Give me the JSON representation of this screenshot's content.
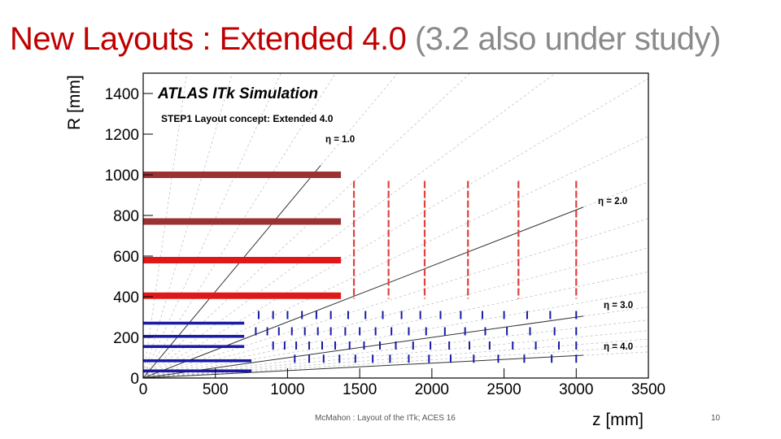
{
  "slide": {
    "title_main": "New Layouts : Extended 4.0",
    "title_sub": "(3.2 also under study)",
    "footer": "McMahon : Layout of the ITk; ACES 16",
    "page_number": "10"
  },
  "chart_data": {
    "type": "scatter",
    "title": "ATLAS ITk Simulation",
    "subtitle": "STEP1 Layout concept: Extended 4.0",
    "xlabel": "z [mm]",
    "ylabel": "R [mm]",
    "xlim": [
      0,
      3500
    ],
    "ylim": [
      0,
      1500
    ],
    "xticks": [
      0,
      500,
      1000,
      1500,
      2000,
      2500,
      3000,
      3500
    ],
    "yticks": [
      0,
      200,
      400,
      600,
      800,
      1000,
      1200,
      1400
    ],
    "grid": false,
    "colors": {
      "strip_outer": "#9b3232",
      "strip_inner": "#e01818",
      "pixel": "#1a1aa6",
      "eta_line": "#333333",
      "ray": "#bbbbbb",
      "disk": "#e04040"
    },
    "eta_lines": [
      {
        "label": "η = 1.0",
        "eta": 1.0
      },
      {
        "label": "η = 2.0",
        "eta": 2.0
      },
      {
        "label": "η = 3.0",
        "eta": 3.0
      },
      {
        "label": "η = 4.0",
        "eta": 4.0
      }
    ],
    "strip_barrels": [
      {
        "r": 1000,
        "z_max": 1370,
        "color": "strip_outer"
      },
      {
        "r": 770,
        "z_max": 1370,
        "color": "strip_outer"
      },
      {
        "r": 580,
        "z_max": 1370,
        "color": "strip_inner"
      },
      {
        "r": 405,
        "z_max": 1370,
        "color": "strip_inner"
      }
    ],
    "strip_disks": [
      {
        "z": 1460,
        "r_min": 390,
        "r_max": 970
      },
      {
        "z": 1700,
        "r_min": 390,
        "r_max": 970
      },
      {
        "z": 1950,
        "r_min": 390,
        "r_max": 970
      },
      {
        "z": 2250,
        "r_min": 390,
        "r_max": 970
      },
      {
        "z": 2600,
        "r_min": 390,
        "r_max": 970
      },
      {
        "z": 3000,
        "r_min": 390,
        "r_max": 970
      }
    ],
    "pixel_barrels": [
      {
        "r": 270,
        "z_max": 700
      },
      {
        "r": 205,
        "z_max": 700
      },
      {
        "r": 155,
        "z_max": 700
      },
      {
        "r": 85,
        "z_max": 750
      },
      {
        "r": 35,
        "z_max": 750
      }
    ],
    "pixel_rings": {
      "rows": [
        {
          "r": 310,
          "z": [
            800,
            900,
            1000,
            1100,
            1200,
            1300,
            1420,
            1540,
            1660,
            1790,
            1920,
            2060,
            2200,
            2350,
            2500,
            2660,
            2820,
            3000
          ]
        },
        {
          "r": 230,
          "z": [
            780,
            860,
            940,
            1030,
            1120,
            1210,
            1300,
            1400,
            1500,
            1610,
            1720,
            1840,
            1960,
            2090,
            2230,
            2370,
            2520,
            2680,
            2850,
            3000
          ]
        },
        {
          "r": 160,
          "z": [
            900,
            980,
            1060,
            1150,
            1240,
            1330,
            1430,
            1530,
            1640,
            1750,
            1870,
            1990,
            2120,
            2260,
            2400,
            2560,
            2720,
            2880,
            3000
          ]
        },
        {
          "r": 95,
          "z": [
            1050,
            1150,
            1250,
            1360,
            1470,
            1590,
            1710,
            1840,
            1980,
            2130,
            2290,
            2460,
            2640,
            2830,
            3000
          ]
        }
      ]
    }
  }
}
